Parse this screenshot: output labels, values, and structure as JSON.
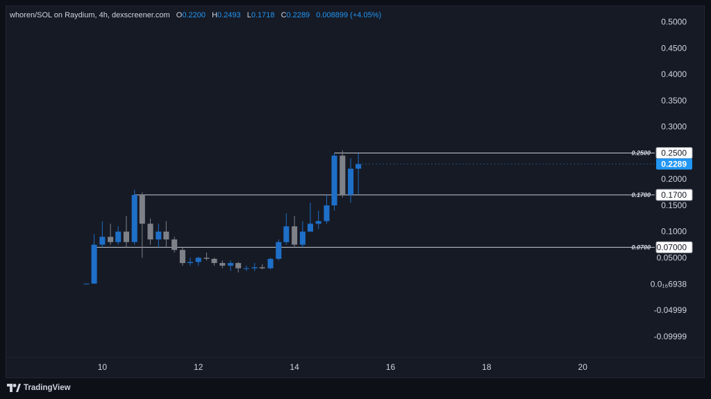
{
  "header": {
    "pair": "whoren/SOL on Raydium, 4h, dexscreener.com",
    "open_label": "O",
    "open": "0.2200",
    "high_label": "H",
    "high": "0.2493",
    "low_label": "L",
    "low": "0.1718",
    "close_label": "C",
    "close": "0.2289",
    "change": "0.008899 (+4.05%)"
  },
  "footer": {
    "brand": "TradingView"
  },
  "price_axis": {
    "ticks": [
      {
        "value": 0.5,
        "label": "0.5000"
      },
      {
        "value": 0.45,
        "label": "0.4500"
      },
      {
        "value": 0.4,
        "label": "0.4000"
      },
      {
        "value": 0.35,
        "label": "0.3500"
      },
      {
        "value": 0.3,
        "label": "0.3000"
      },
      {
        "value": 0.2,
        "label": "0.2000"
      },
      {
        "value": 0.15,
        "label": "0.1500"
      },
      {
        "value": 0.1,
        "label": "0.1000"
      },
      {
        "value": 0.05,
        "label": "0.05000"
      },
      {
        "value": 6.938e-07,
        "label": "0.0₁₆6938"
      },
      {
        "value": -0.04999,
        "label": "-0.04999"
      },
      {
        "value": -0.09999,
        "label": "-0.09999"
      }
    ],
    "current_price_label": "0.2289"
  },
  "levels": [
    {
      "value": 0.25,
      "label": "0.2500",
      "tag": "0.2500"
    },
    {
      "value": 0.17,
      "label": "0.1700",
      "tag": "0.1700"
    },
    {
      "value": 0.07,
      "label": "0.0700",
      "tag": "0.07000"
    }
  ],
  "colors": {
    "up": "#1e6fc8",
    "down": "#7e8188",
    "current": "#2196f3",
    "line": "#c9ccd3",
    "background": "#161a25"
  },
  "chart_data": {
    "type": "candlestick",
    "title": "whoren/SOL on Raydium, 4h, dexscreener.com",
    "interval": "4h",
    "x_ticks": [
      10,
      12,
      14,
      16,
      18,
      20
    ],
    "xlim": [
      8.0,
      21.5
    ],
    "ylim": [
      -0.14,
      0.53
    ],
    "grid": false,
    "candles": [
      {
        "t": 9.67,
        "o": 0.0005,
        "h": 0.001,
        "l": 0.0003,
        "c": 0.0007
      },
      {
        "t": 9.83,
        "o": 0.0007,
        "h": 0.095,
        "l": 0.0007,
        "c": 0.075
      },
      {
        "t": 10.0,
        "o": 0.075,
        "h": 0.12,
        "l": 0.07,
        "c": 0.09
      },
      {
        "t": 10.17,
        "o": 0.09,
        "h": 0.115,
        "l": 0.075,
        "c": 0.08
      },
      {
        "t": 10.33,
        "o": 0.08,
        "h": 0.11,
        "l": 0.075,
        "c": 0.1
      },
      {
        "t": 10.5,
        "o": 0.1,
        "h": 0.13,
        "l": 0.07,
        "c": 0.08
      },
      {
        "t": 10.67,
        "o": 0.08,
        "h": 0.18,
        "l": 0.075,
        "c": 0.17
      },
      {
        "t": 10.83,
        "o": 0.17,
        "h": 0.175,
        "l": 0.05,
        "c": 0.115
      },
      {
        "t": 11.0,
        "o": 0.115,
        "h": 0.125,
        "l": 0.075,
        "c": 0.085
      },
      {
        "t": 11.17,
        "o": 0.085,
        "h": 0.115,
        "l": 0.07,
        "c": 0.1
      },
      {
        "t": 11.33,
        "o": 0.1,
        "h": 0.12,
        "l": 0.07,
        "c": 0.085
      },
      {
        "t": 11.5,
        "o": 0.085,
        "h": 0.09,
        "l": 0.06,
        "c": 0.065
      },
      {
        "t": 11.67,
        "o": 0.065,
        "h": 0.07,
        "l": 0.035,
        "c": 0.04
      },
      {
        "t": 11.83,
        "o": 0.04,
        "h": 0.05,
        "l": 0.035,
        "c": 0.042
      },
      {
        "t": 12.0,
        "o": 0.042,
        "h": 0.052,
        "l": 0.035,
        "c": 0.05
      },
      {
        "t": 12.17,
        "o": 0.05,
        "h": 0.06,
        "l": 0.045,
        "c": 0.048
      },
      {
        "t": 12.33,
        "o": 0.048,
        "h": 0.05,
        "l": 0.035,
        "c": 0.04
      },
      {
        "t": 12.5,
        "o": 0.04,
        "h": 0.045,
        "l": 0.03,
        "c": 0.035
      },
      {
        "t": 12.67,
        "o": 0.035,
        "h": 0.045,
        "l": 0.025,
        "c": 0.04
      },
      {
        "t": 12.83,
        "o": 0.04,
        "h": 0.042,
        "l": 0.022,
        "c": 0.03
      },
      {
        "t": 13.0,
        "o": 0.03,
        "h": 0.035,
        "l": 0.025,
        "c": 0.03
      },
      {
        "t": 13.17,
        "o": 0.03,
        "h": 0.04,
        "l": 0.025,
        "c": 0.032
      },
      {
        "t": 13.33,
        "o": 0.032,
        "h": 0.038,
        "l": 0.028,
        "c": 0.03
      },
      {
        "t": 13.5,
        "o": 0.03,
        "h": 0.05,
        "l": 0.028,
        "c": 0.048
      },
      {
        "t": 13.67,
        "o": 0.048,
        "h": 0.085,
        "l": 0.045,
        "c": 0.08
      },
      {
        "t": 13.83,
        "o": 0.08,
        "h": 0.135,
        "l": 0.075,
        "c": 0.11
      },
      {
        "t": 14.0,
        "o": 0.11,
        "h": 0.13,
        "l": 0.07,
        "c": 0.075
      },
      {
        "t": 14.17,
        "o": 0.075,
        "h": 0.12,
        "l": 0.07,
        "c": 0.1
      },
      {
        "t": 14.33,
        "o": 0.1,
        "h": 0.155,
        "l": 0.1,
        "c": 0.115
      },
      {
        "t": 14.5,
        "o": 0.115,
        "h": 0.14,
        "l": 0.105,
        "c": 0.12
      },
      {
        "t": 14.67,
        "o": 0.12,
        "h": 0.17,
        "l": 0.115,
        "c": 0.15
      },
      {
        "t": 14.83,
        "o": 0.15,
        "h": 0.25,
        "l": 0.14,
        "c": 0.245
      },
      {
        "t": 15.0,
        "o": 0.245,
        "h": 0.255,
        "l": 0.165,
        "c": 0.17
      },
      {
        "t": 15.17,
        "o": 0.17,
        "h": 0.24,
        "l": 0.155,
        "c": 0.22
      },
      {
        "t": 15.33,
        "o": 0.22,
        "h": 0.2493,
        "l": 0.1718,
        "c": 0.2289
      }
    ]
  }
}
